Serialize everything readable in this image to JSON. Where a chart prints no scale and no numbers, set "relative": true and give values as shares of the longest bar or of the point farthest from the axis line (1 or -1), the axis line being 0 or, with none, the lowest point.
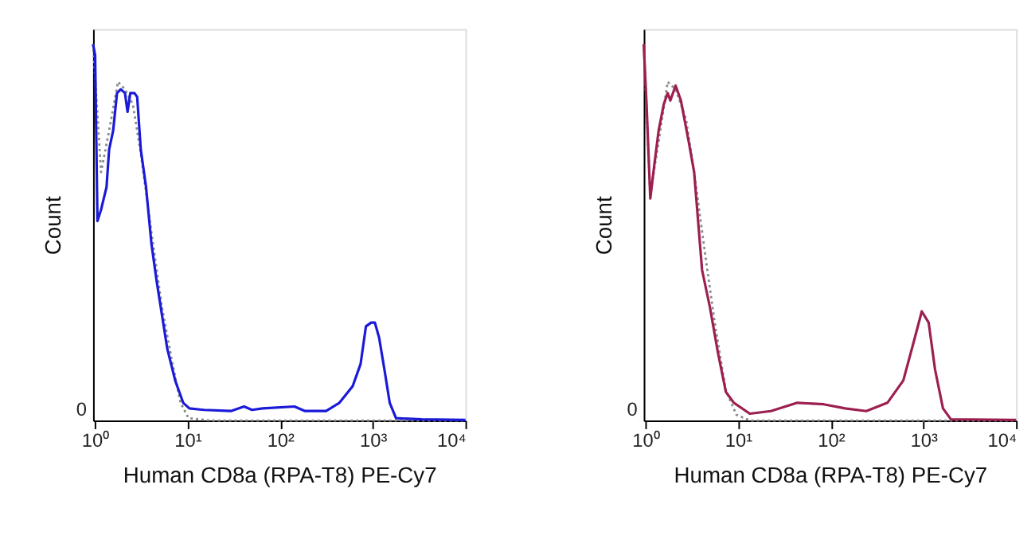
{
  "chart_data": [
    {
      "type": "line",
      "relative": true,
      "xlabel": "Human CD8a (RPA-T8) PE-Cy7",
      "ylabel": "Count",
      "log": "x",
      "grid": false,
      "marker": "none",
      "xlim": [
        0.96,
        10000
      ],
      "xticks": [
        {
          "value": 1,
          "label": "10⁰"
        },
        {
          "value": 10,
          "label": "10¹"
        },
        {
          "value": 100,
          "label": "10²"
        },
        {
          "value": 1000,
          "label": "10³"
        },
        {
          "value": 10000,
          "label": "10⁴"
        }
      ],
      "annotations": [
        "0"
      ],
      "series": [
        {
          "color": "#8a8a8a",
          "line_style": "dotted",
          "x": [
            0.96,
            1.17,
            1.43,
            1.78,
            2.12,
            2.58,
            3.14,
            4.09,
            5.32,
            6.92,
            8.43,
            10.3,
            17.4,
            10000
          ],
          "values": [
            1.0,
            0.66,
            0.77,
            0.9,
            0.88,
            0.84,
            0.71,
            0.5,
            0.3,
            0.15,
            0.047,
            0.006,
            0,
            0
          ]
        },
        {
          "color": "#1a1ad8",
          "line_style": "solid",
          "x": [
            0.96,
            1.01,
            1.07,
            1.17,
            1.34,
            1.43,
            1.58,
            1.74,
            1.91,
            2.12,
            2.26,
            2.42,
            2.68,
            2.87,
            3.14,
            3.58,
            4.09,
            4.66,
            5.32,
            6.07,
            7.39,
            9.0,
            10.5,
            15.2,
            29.4,
            40.9,
            49.8,
            64.8,
            143,
            186,
            314,
            437,
            607,
            739,
            844,
            961,
            1054,
            1171,
            1337,
            1524,
            1782,
            3357,
            10000
          ],
          "values": [
            1.0,
            0.97,
            0.53,
            0.56,
            0.62,
            0.72,
            0.77,
            0.87,
            0.88,
            0.87,
            0.82,
            0.87,
            0.87,
            0.86,
            0.72,
            0.62,
            0.47,
            0.37,
            0.28,
            0.19,
            0.106,
            0.047,
            0.032,
            0.028,
            0.025,
            0.037,
            0.028,
            0.032,
            0.037,
            0.025,
            0.025,
            0.047,
            0.091,
            0.15,
            0.25,
            0.26,
            0.26,
            0.22,
            0.135,
            0.047,
            0.006,
            0.003,
            0.0015
          ]
        }
      ]
    },
    {
      "type": "line",
      "relative": true,
      "xlabel": "Human CD8a (RPA-T8) PE-Cy7",
      "ylabel": "Count",
      "log": "x",
      "grid": false,
      "marker": "none",
      "xlim": [
        0.96,
        10000
      ],
      "xticks": [
        {
          "value": 1,
          "label": "10⁰"
        },
        {
          "value": 10,
          "label": "10¹"
        },
        {
          "value": 100,
          "label": "10²"
        },
        {
          "value": 1000,
          "label": "10³"
        },
        {
          "value": 10000,
          "label": "10⁴"
        }
      ],
      "annotations": [
        "0"
      ],
      "series": [
        {
          "color": "#8a8a8a",
          "line_style": "dotted",
          "x": [
            0.96,
            1.13,
            1.39,
            1.74,
            2.12,
            2.75,
            3.36,
            4.37,
            5.68,
            7.39,
            9.6,
            13.4,
            10000
          ],
          "values": [
            1.0,
            0.6,
            0.74,
            0.9,
            0.88,
            0.8,
            0.66,
            0.45,
            0.25,
            0.08,
            0.015,
            0,
            0
          ]
        },
        {
          "color": "#9c1f50",
          "line_style": "solid",
          "x": [
            0.96,
            1.03,
            1.13,
            1.25,
            1.39,
            1.58,
            1.74,
            1.86,
            2.12,
            2.42,
            2.94,
            3.36,
            4.09,
            4.98,
            6.07,
            7.39,
            9.0,
            13.4,
            22.6,
            43.6,
            84.3,
            143,
            242,
            409,
            607,
            789,
            961,
            1140,
            1337,
            1627,
            1982,
            10000
          ],
          "values": [
            1.0,
            0.84,
            0.59,
            0.68,
            0.77,
            0.84,
            0.87,
            0.85,
            0.89,
            0.85,
            0.74,
            0.66,
            0.4,
            0.3,
            0.18,
            0.076,
            0.047,
            0.018,
            0.025,
            0.047,
            0.043,
            0.032,
            0.025,
            0.047,
            0.106,
            0.21,
            0.29,
            0.26,
            0.135,
            0.032,
            0.003,
            0.0015
          ]
        }
      ]
    }
  ]
}
